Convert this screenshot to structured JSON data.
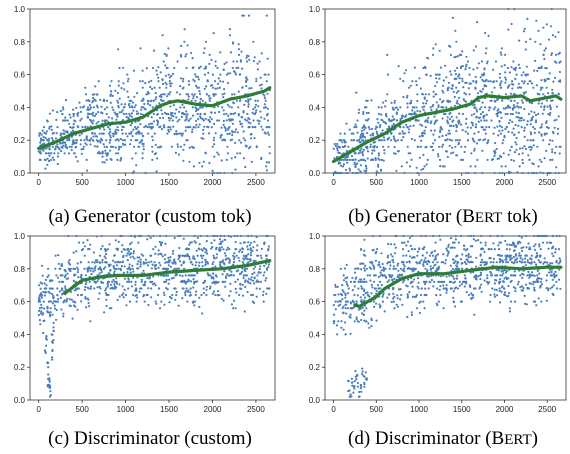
{
  "figure": {
    "captions": [
      {
        "prefix": "(a) Generator (custom tok)"
      },
      {
        "prefix": "(b) Generator (B",
        "smallcaps": "ERT",
        "suffix": " tok)"
      },
      {
        "prefix": "(c) Discriminator (custom)"
      },
      {
        "prefix": "(d) Discriminator (B",
        "smallcaps": "ERT",
        "suffix": ")"
      }
    ],
    "colors": {
      "scatter": "#4a7ebb",
      "trend": "#2e7d32",
      "axis": "#333333"
    }
  },
  "chart_data": [
    {
      "id": "a",
      "type": "scatter",
      "title": "",
      "xlabel": "",
      "ylabel": "",
      "xlim": [
        -100,
        2720
      ],
      "ylim": [
        0.0,
        1.0
      ],
      "xticks": [
        0,
        500,
        1000,
        1500,
        2000,
        2500
      ],
      "yticks": [
        0.0,
        0.2,
        0.4,
        0.6,
        0.8,
        1.0
      ],
      "grid": false,
      "series": [
        {
          "kind": "scatter-band",
          "x_range": [
            0,
            2660
          ],
          "n_points": 1200,
          "center": [
            [
              0,
              0.16
            ],
            [
              300,
              0.22
            ],
            [
              600,
              0.28
            ],
            [
              900,
              0.31
            ],
            [
              1200,
              0.34
            ],
            [
              1500,
              0.4
            ],
            [
              1800,
              0.4
            ],
            [
              2100,
              0.38
            ],
            [
              2400,
              0.4
            ],
            [
              2660,
              0.38
            ]
          ],
          "spread": [
            [
              0,
              0.05
            ],
            [
              600,
              0.1
            ],
            [
              1200,
              0.14
            ],
            [
              2660,
              0.2
            ]
          ],
          "max": 0.96
        },
        {
          "kind": "trend",
          "x": [
            0,
            200,
            400,
            600,
            800,
            1000,
            1200,
            1400,
            1500,
            1600,
            1800,
            2000,
            2100,
            2200,
            2400,
            2600,
            2660
          ],
          "y": [
            0.15,
            0.19,
            0.24,
            0.27,
            0.3,
            0.31,
            0.34,
            0.41,
            0.43,
            0.44,
            0.42,
            0.41,
            0.43,
            0.45,
            0.47,
            0.5,
            0.52
          ]
        }
      ]
    },
    {
      "id": "b",
      "type": "scatter",
      "title": "",
      "xlabel": "",
      "ylabel": "",
      "xlim": [
        -100,
        2720
      ],
      "ylim": [
        0.0,
        1.0
      ],
      "xticks": [
        0,
        500,
        1000,
        1500,
        2000,
        2500
      ],
      "yticks": [
        0.0,
        0.2,
        0.4,
        0.6,
        0.8,
        1.0
      ],
      "grid": false,
      "series": [
        {
          "kind": "scatter-band",
          "x_range": [
            0,
            2660
          ],
          "n_points": 1200,
          "center": [
            [
              0,
              0.07
            ],
            [
              300,
              0.15
            ],
            [
              600,
              0.24
            ],
            [
              900,
              0.31
            ],
            [
              1200,
              0.34
            ],
            [
              1500,
              0.37
            ],
            [
              1800,
              0.38
            ],
            [
              2100,
              0.38
            ],
            [
              2400,
              0.38
            ],
            [
              2660,
              0.4
            ]
          ],
          "spread": [
            [
              0,
              0.06
            ],
            [
              600,
              0.12
            ],
            [
              1200,
              0.17
            ],
            [
              2660,
              0.22
            ]
          ],
          "max": 1.0
        },
        {
          "kind": "trend",
          "x": [
            0,
            200,
            400,
            600,
            800,
            1000,
            1200,
            1400,
            1600,
            1700,
            1800,
            2000,
            2200,
            2300,
            2400,
            2500,
            2600,
            2660
          ],
          "y": [
            0.07,
            0.13,
            0.19,
            0.24,
            0.31,
            0.35,
            0.37,
            0.39,
            0.42,
            0.46,
            0.47,
            0.46,
            0.47,
            0.44,
            0.45,
            0.46,
            0.47,
            0.45
          ]
        }
      ]
    },
    {
      "id": "c",
      "type": "scatter",
      "title": "",
      "xlabel": "",
      "ylabel": "",
      "xlim": [
        -100,
        2720
      ],
      "ylim": [
        0.0,
        1.0
      ],
      "xticks": [
        0,
        500,
        1000,
        1500,
        2000,
        2500
      ],
      "yticks": [
        0.0,
        0.2,
        0.4,
        0.6,
        0.8,
        1.0
      ],
      "grid": false,
      "series": [
        {
          "kind": "scatter-band",
          "x_range": [
            0,
            2660
          ],
          "n_points": 1100,
          "center": [
            [
              0,
              0.58
            ],
            [
              200,
              0.65
            ],
            [
              400,
              0.72
            ],
            [
              700,
              0.76
            ],
            [
              1200,
              0.77
            ],
            [
              1800,
              0.79
            ],
            [
              2300,
              0.8
            ],
            [
              2660,
              0.82
            ]
          ],
          "spread": [
            [
              0,
              0.08
            ],
            [
              400,
              0.09
            ],
            [
              2660,
              0.1
            ]
          ],
          "max": 1.0
        },
        {
          "kind": "outliers",
          "x": [
            60,
            80,
            90,
            100,
            110,
            120,
            130,
            140,
            150,
            160,
            170
          ],
          "y": [
            0.52,
            0.32,
            0.38,
            0.22,
            0.12,
            0.1,
            0.08,
            0.05,
            0.28,
            0.36,
            0.45
          ]
        },
        {
          "kind": "trend",
          "x": [
            300,
            400,
            500,
            700,
            900,
            1200,
            1500,
            1800,
            2100,
            2400,
            2660
          ],
          "y": [
            0.65,
            0.69,
            0.73,
            0.75,
            0.76,
            0.76,
            0.78,
            0.79,
            0.8,
            0.82,
            0.85
          ]
        }
      ]
    },
    {
      "id": "d",
      "type": "scatter",
      "title": "",
      "xlabel": "",
      "ylabel": "",
      "xlim": [
        -100,
        2720
      ],
      "ylim": [
        0.0,
        1.0
      ],
      "xticks": [
        0,
        500,
        1000,
        1500,
        2000,
        2500
      ],
      "yticks": [
        0.0,
        0.2,
        0.4,
        0.6,
        0.8,
        1.0
      ],
      "grid": false,
      "series": [
        {
          "kind": "scatter-band",
          "x_range": [
            0,
            2660
          ],
          "n_points": 1100,
          "center": [
            [
              0,
              0.62
            ],
            [
              200,
              0.57
            ],
            [
              400,
              0.66
            ],
            [
              700,
              0.73
            ],
            [
              1000,
              0.76
            ],
            [
              1500,
              0.78
            ],
            [
              2000,
              0.79
            ],
            [
              2660,
              0.81
            ]
          ],
          "spread": [
            [
              0,
              0.09
            ],
            [
              400,
              0.1
            ],
            [
              2660,
              0.1
            ]
          ],
          "max": 1.0
        },
        {
          "kind": "outliers",
          "x": [
            180,
            200,
            220,
            240,
            260,
            280,
            300,
            320,
            340,
            360,
            380
          ],
          "y": [
            0.08,
            0.04,
            0.1,
            0.06,
            0.15,
            0.12,
            0.03,
            0.07,
            0.18,
            0.11,
            0.14
          ]
        },
        {
          "kind": "trend",
          "x": [
            250,
            300,
            400,
            500,
            600,
            800,
            1000,
            1300,
            1600,
            1900,
            2200,
            2500,
            2660
          ],
          "y": [
            0.58,
            0.57,
            0.6,
            0.63,
            0.68,
            0.74,
            0.77,
            0.77,
            0.79,
            0.81,
            0.8,
            0.81,
            0.81
          ]
        }
      ]
    }
  ]
}
